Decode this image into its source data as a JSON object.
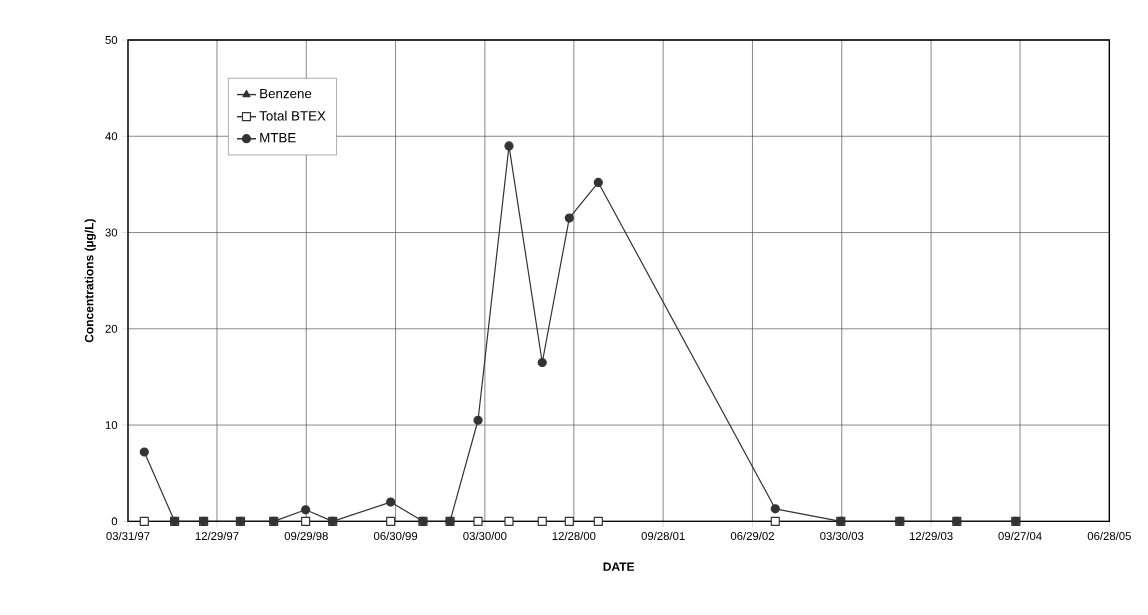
{
  "chart_data": {
    "type": "line",
    "xlabel": "DATE",
    "ylabel": "Concentrations (µg/L)",
    "x": [
      "1997-05-20",
      "1997-08-21",
      "1997-11-18",
      "1998-03-11",
      "1998-06-21",
      "1998-09-27",
      "1998-12-19",
      "1999-06-15",
      "1999-09-22",
      "1999-12-14",
      "2000-03-09",
      "2000-06-12",
      "2000-09-22",
      "2000-12-14",
      "2001-03-13",
      "2002-09-07",
      "2003-03-27",
      "2003-09-24",
      "2004-03-17",
      "2004-09-14"
    ],
    "series": [
      {
        "name": "Benzene",
        "color": "#333333",
        "marker": "triangle",
        "values": [
          null,
          null,
          null,
          null,
          null,
          null,
          null,
          null,
          null,
          null,
          null,
          null,
          null,
          null,
          null,
          null,
          null,
          null,
          null,
          null
        ]
      },
      {
        "name": "Total BTEX",
        "color": "#333333",
        "marker": "square",
        "values": [
          0,
          0,
          0,
          0,
          0,
          0,
          0,
          0,
          0,
          0,
          0,
          0,
          0,
          0,
          0,
          0,
          0,
          0,
          0,
          0
        ]
      },
      {
        "name": "MTBE",
        "color": "#333333",
        "marker": "circle",
        "values": [
          7.2,
          0,
          0,
          0,
          0,
          1.2,
          0,
          2.0,
          0,
          0,
          10.5,
          39,
          16.5,
          31.5,
          35.2,
          1.3,
          0,
          0,
          0,
          0
        ]
      }
    ],
    "xlim": [
      "1997-03-31",
      "2005-06-28"
    ],
    "xticks": [
      {
        "value": "1997-03-31",
        "label": "03/31/97"
      },
      {
        "value": "1997-12-29",
        "label": "12/29/97"
      },
      {
        "value": "1998-09-29",
        "label": "09/29/98"
      },
      {
        "value": "1999-06-30",
        "label": "06/30/99"
      },
      {
        "value": "2000-03-30",
        "label": "03/30/00"
      },
      {
        "value": "2000-12-28",
        "label": "12/28/00"
      },
      {
        "value": "2001-09-28",
        "label": "09/28/01"
      },
      {
        "value": "2002-06-29",
        "label": "06/29/02"
      },
      {
        "value": "2003-03-30",
        "label": "03/30/03"
      },
      {
        "value": "2003-12-29",
        "label": "12/29/03"
      },
      {
        "value": "2004-09-27",
        "label": "09/27/04"
      },
      {
        "value": "2005-06-28",
        "label": "06/28/05"
      }
    ],
    "ylim": [
      0,
      50
    ],
    "yticks": [
      0,
      10,
      20,
      30,
      40,
      50
    ],
    "grid": true,
    "legend": "top left",
    "line_style": "solid"
  }
}
